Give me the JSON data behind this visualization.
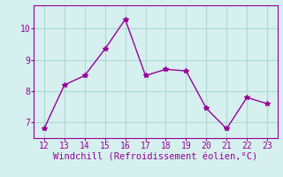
{
  "x": [
    12,
    13,
    14,
    15,
    16,
    17,
    18,
    19,
    20,
    21,
    22,
    23
  ],
  "y": [
    6.8,
    8.2,
    8.5,
    9.35,
    10.3,
    8.5,
    8.7,
    8.65,
    7.45,
    6.8,
    7.8,
    7.6
  ],
  "line_color": "#990099",
  "marker": "*",
  "marker_size": 4,
  "line_width": 1.0,
  "background_color": "#d5f0ee",
  "grid_color": "#b0d8d4",
  "xlabel": "Windchill (Refroidissement éolien,°C)",
  "xlabel_color": "#990099",
  "xlabel_fontsize": 7.5,
  "tick_color": "#990099",
  "tick_fontsize": 7,
  "ylim": [
    6.5,
    10.75
  ],
  "xlim": [
    11.5,
    23.5
  ],
  "yticks": [
    7,
    8,
    9,
    10
  ],
  "xticks": [
    12,
    13,
    14,
    15,
    16,
    17,
    18,
    19,
    20,
    21,
    22,
    23
  ]
}
